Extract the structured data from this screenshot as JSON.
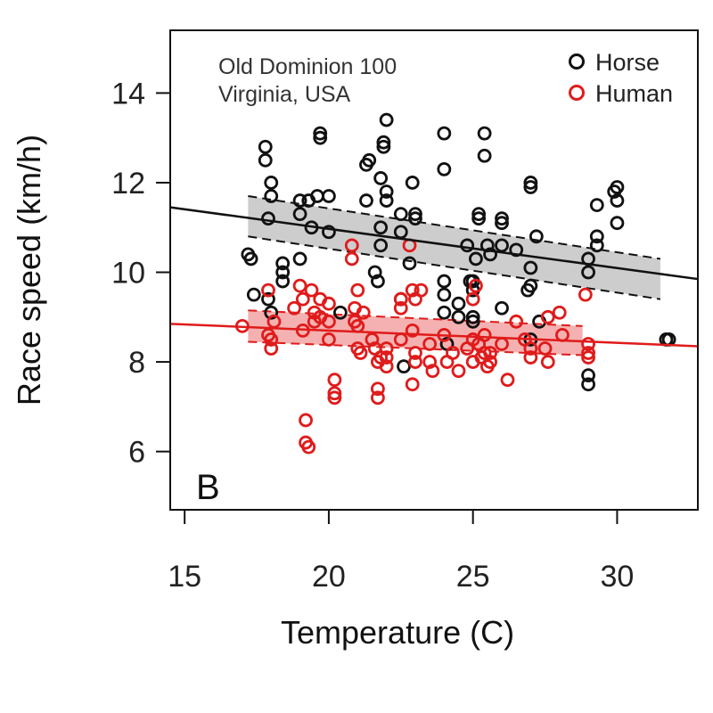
{
  "chart_data": {
    "type": "scatter",
    "panel_label": "B",
    "annotation_lines": [
      "Old Dominion 100",
      "Virginia, USA"
    ],
    "xlabel": "Temperature (C)",
    "ylabel": "Race speed (km/h)",
    "xlim": [
      14.5,
      32.8
    ],
    "ylim": [
      4.7,
      15.4
    ],
    "xticks": [
      15,
      20,
      25,
      30
    ],
    "yticks": [
      6,
      8,
      10,
      12,
      14
    ],
    "grid": false,
    "legend_position": "top-right",
    "series": [
      {
        "name": "Horse",
        "color": "#111111",
        "marker": "open-circle",
        "points": [
          [
            17.2,
            10.4
          ],
          [
            17.3,
            10.3
          ],
          [
            17.4,
            9.5
          ],
          [
            17.8,
            12.8
          ],
          [
            17.8,
            12.5
          ],
          [
            17.9,
            11.2
          ],
          [
            18.0,
            12.0
          ],
          [
            18.0,
            11.7
          ],
          [
            17.9,
            9.4
          ],
          [
            18.0,
            9.1
          ],
          [
            18.4,
            10.2
          ],
          [
            18.4,
            10.0
          ],
          [
            18.4,
            9.8
          ],
          [
            19.0,
            11.6
          ],
          [
            19.0,
            11.3
          ],
          [
            19.0,
            10.3
          ],
          [
            19.3,
            11.6
          ],
          [
            19.4,
            11.0
          ],
          [
            19.6,
            11.7
          ],
          [
            19.7,
            13.0
          ],
          [
            19.7,
            13.1
          ],
          [
            20.0,
            11.7
          ],
          [
            20.0,
            10.9
          ],
          [
            20.4,
            9.1
          ],
          [
            21.3,
            11.6
          ],
          [
            21.3,
            12.4
          ],
          [
            21.4,
            12.5
          ],
          [
            21.6,
            10.0
          ],
          [
            21.7,
            9.8
          ],
          [
            21.8,
            12.1
          ],
          [
            21.8,
            11.0
          ],
          [
            21.8,
            10.6
          ],
          [
            21.9,
            12.9
          ],
          [
            21.9,
            12.8
          ],
          [
            22.0,
            13.4
          ],
          [
            22.0,
            11.8
          ],
          [
            22.0,
            11.6
          ],
          [
            22.5,
            11.3
          ],
          [
            22.5,
            10.9
          ],
          [
            22.5,
            9.4
          ],
          [
            22.6,
            7.9
          ],
          [
            22.8,
            10.2
          ],
          [
            22.9,
            12.0
          ],
          [
            23.0,
            11.3
          ],
          [
            23.0,
            11.2
          ],
          [
            24.0,
            13.1
          ],
          [
            24.0,
            12.3
          ],
          [
            24.0,
            9.8
          ],
          [
            24.0,
            9.5
          ],
          [
            24.0,
            9.1
          ],
          [
            24.1,
            8.4
          ],
          [
            24.5,
            9.3
          ],
          [
            24.5,
            9.0
          ],
          [
            24.8,
            10.6
          ],
          [
            24.9,
            9.8
          ],
          [
            25.0,
            9.8
          ],
          [
            25.0,
            9.6
          ],
          [
            25.0,
            9.0
          ],
          [
            25.0,
            8.9
          ],
          [
            25.1,
            10.3
          ],
          [
            25.2,
            11.3
          ],
          [
            25.2,
            11.2
          ],
          [
            25.4,
            13.1
          ],
          [
            25.4,
            12.6
          ],
          [
            25.5,
            10.6
          ],
          [
            25.6,
            10.4
          ],
          [
            26.0,
            11.2
          ],
          [
            26.0,
            11.1
          ],
          [
            26.0,
            10.6
          ],
          [
            26.0,
            9.2
          ],
          [
            26.5,
            10.5
          ],
          [
            26.9,
            9.6
          ],
          [
            27.0,
            12.0
          ],
          [
            27.0,
            11.9
          ],
          [
            27.0,
            10.1
          ],
          [
            27.0,
            9.7
          ],
          [
            27.0,
            8.5
          ],
          [
            27.2,
            10.8
          ],
          [
            27.3,
            8.9
          ],
          [
            29.0,
            10.3
          ],
          [
            29.0,
            10.0
          ],
          [
            29.0,
            7.7
          ],
          [
            29.0,
            7.5
          ],
          [
            29.3,
            11.5
          ],
          [
            29.3,
            10.8
          ],
          [
            29.3,
            10.6
          ],
          [
            29.9,
            11.8
          ],
          [
            30.0,
            11.9
          ],
          [
            30.0,
            11.6
          ],
          [
            30.0,
            11.1
          ],
          [
            31.7,
            8.5
          ],
          [
            31.8,
            8.5
          ]
        ]
      },
      {
        "name": "Human",
        "color": "#e01b1b",
        "marker": "open-circle",
        "points": [
          [
            17.0,
            8.8
          ],
          [
            17.9,
            9.6
          ],
          [
            17.9,
            8.6
          ],
          [
            18.0,
            8.5
          ],
          [
            18.0,
            8.3
          ],
          [
            18.1,
            8.9
          ],
          [
            18.8,
            9.2
          ],
          [
            19.0,
            9.7
          ],
          [
            19.1,
            9.4
          ],
          [
            19.1,
            8.7
          ],
          [
            19.2,
            6.7
          ],
          [
            19.2,
            6.2
          ],
          [
            19.3,
            6.1
          ],
          [
            19.4,
            9.6
          ],
          [
            19.5,
            9.1
          ],
          [
            19.5,
            8.9
          ],
          [
            19.7,
            9.4
          ],
          [
            19.7,
            9.0
          ],
          [
            20.0,
            9.3
          ],
          [
            20.0,
            8.9
          ],
          [
            20.0,
            8.5
          ],
          [
            20.2,
            7.6
          ],
          [
            20.2,
            7.3
          ],
          [
            20.2,
            7.2
          ],
          [
            20.8,
            10.6
          ],
          [
            20.8,
            10.3
          ],
          [
            20.9,
            9.2
          ],
          [
            20.9,
            8.9
          ],
          [
            21.0,
            9.6
          ],
          [
            21.0,
            8.8
          ],
          [
            21.0,
            8.3
          ],
          [
            21.1,
            8.2
          ],
          [
            21.2,
            9.1
          ],
          [
            21.5,
            8.5
          ],
          [
            21.6,
            8.3
          ],
          [
            21.7,
            8.0
          ],
          [
            21.7,
            7.4
          ],
          [
            21.7,
            7.2
          ],
          [
            21.8,
            8.1
          ],
          [
            22.0,
            8.3
          ],
          [
            22.0,
            8.1
          ],
          [
            22.0,
            7.9
          ],
          [
            22.5,
            9.4
          ],
          [
            22.5,
            9.2
          ],
          [
            22.5,
            8.5
          ],
          [
            22.8,
            10.6
          ],
          [
            22.9,
            9.6
          ],
          [
            22.9,
            8.7
          ],
          [
            22.9,
            7.5
          ],
          [
            23.0,
            9.4
          ],
          [
            23.0,
            8.2
          ],
          [
            23.0,
            8.0
          ],
          [
            23.2,
            9.6
          ],
          [
            23.5,
            8.4
          ],
          [
            23.5,
            8.0
          ],
          [
            23.6,
            7.8
          ],
          [
            24.0,
            8.6
          ],
          [
            24.1,
            8.0
          ],
          [
            24.3,
            8.2
          ],
          [
            24.5,
            7.8
          ],
          [
            24.8,
            8.3
          ],
          [
            25.0,
            9.4
          ],
          [
            25.0,
            8.5
          ],
          [
            25.0,
            8.0
          ],
          [
            25.1,
            9.7
          ],
          [
            25.2,
            8.4
          ],
          [
            25.3,
            8.1
          ],
          [
            25.4,
            8.6
          ],
          [
            25.4,
            8.2
          ],
          [
            25.5,
            7.9
          ],
          [
            25.6,
            8.2
          ],
          [
            25.6,
            8.0
          ],
          [
            26.0,
            8.4
          ],
          [
            26.2,
            7.6
          ],
          [
            26.5,
            8.9
          ],
          [
            26.8,
            8.5
          ],
          [
            27.0,
            8.3
          ],
          [
            27.0,
            8.1
          ],
          [
            27.5,
            8.3
          ],
          [
            27.6,
            8.0
          ],
          [
            27.6,
            9.0
          ],
          [
            28.0,
            9.1
          ],
          [
            28.1,
            8.6
          ],
          [
            28.9,
            9.5
          ],
          [
            29.0,
            8.4
          ],
          [
            29.0,
            8.2
          ],
          [
            29.0,
            8.1
          ]
        ]
      }
    ],
    "fits": [
      {
        "series": "Horse",
        "color": "#111111",
        "line": {
          "x0": 14.5,
          "y0": 11.45,
          "x1": 32.8,
          "y1": 9.85
        },
        "band": {
          "xmin": 17.2,
          "xmax": 31.5,
          "upper": [
            11.7,
            10.3
          ],
          "lower": [
            10.8,
            9.4
          ],
          "fill": "#c8c8c8"
        }
      },
      {
        "series": "Human",
        "color": "#e01b1b",
        "line": {
          "x0": 14.5,
          "y0": 8.85,
          "x1": 32.8,
          "y1": 8.35
        },
        "band": {
          "xmin": 17.2,
          "xmax": 28.8,
          "upper": [
            9.15,
            8.8
          ],
          "lower": [
            8.45,
            8.15
          ],
          "fill": "#f4a9a9"
        }
      }
    ]
  }
}
